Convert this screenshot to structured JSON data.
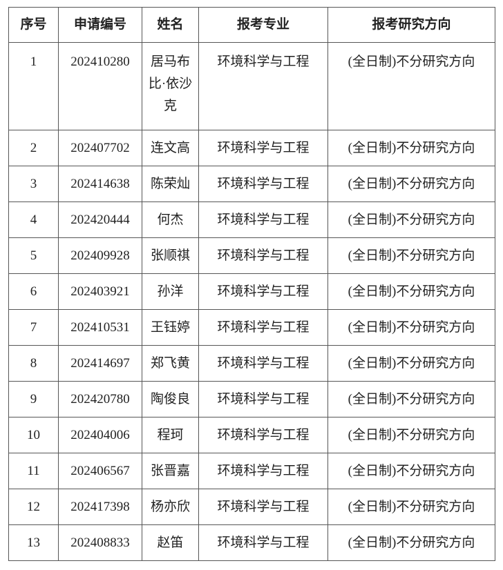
{
  "headers": [
    "序号",
    "申请编号",
    "姓名",
    "报考专业",
    "报考研究方向"
  ],
  "rows": [
    {
      "no": "1",
      "id": "202410280",
      "name": "居马布比·依沙克",
      "major": "环境科学与工程",
      "direction": "(全日制)不分研究方向"
    },
    {
      "no": "2",
      "id": "202407702",
      "name": "连文高",
      "major": "环境科学与工程",
      "direction": "(全日制)不分研究方向"
    },
    {
      "no": "3",
      "id": "202414638",
      "name": "陈荣灿",
      "major": "环境科学与工程",
      "direction": "(全日制)不分研究方向"
    },
    {
      "no": "4",
      "id": "202420444",
      "name": "何杰",
      "major": "环境科学与工程",
      "direction": "(全日制)不分研究方向"
    },
    {
      "no": "5",
      "id": "202409928",
      "name": "张顺祺",
      "major": "环境科学与工程",
      "direction": "(全日制)不分研究方向"
    },
    {
      "no": "6",
      "id": "202403921",
      "name": "孙洋",
      "major": "环境科学与工程",
      "direction": "(全日制)不分研究方向"
    },
    {
      "no": "7",
      "id": "202410531",
      "name": "王钰婷",
      "major": "环境科学与工程",
      "direction": "(全日制)不分研究方向"
    },
    {
      "no": "8",
      "id": "202414697",
      "name": "郑飞黄",
      "major": "环境科学与工程",
      "direction": "(全日制)不分研究方向"
    },
    {
      "no": "9",
      "id": "202420780",
      "name": "陶俊良",
      "major": "环境科学与工程",
      "direction": "(全日制)不分研究方向"
    },
    {
      "no": "10",
      "id": "202404006",
      "name": "程珂",
      "major": "环境科学与工程",
      "direction": "(全日制)不分研究方向"
    },
    {
      "no": "11",
      "id": "202406567",
      "name": "张晋嘉",
      "major": "环境科学与工程",
      "direction": "(全日制)不分研究方向"
    },
    {
      "no": "12",
      "id": "202417398",
      "name": "杨亦欣",
      "major": "环境科学与工程",
      "direction": "(全日制)不分研究方向"
    },
    {
      "no": "13",
      "id": "202408833",
      "name": "赵笛",
      "major": "环境科学与工程",
      "direction": "(全日制)不分研究方向"
    }
  ]
}
